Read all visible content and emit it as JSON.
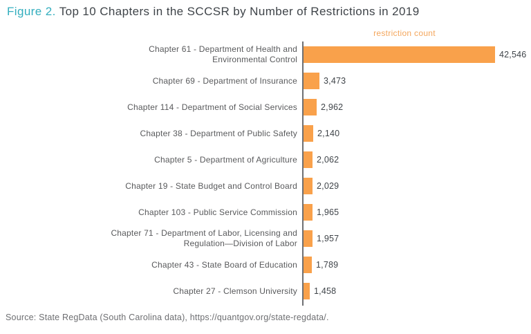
{
  "title": {
    "prefix": "Figure 2.",
    "text": "Top 10 Chapters in the SCCSR by Number of Restrictions in 2019"
  },
  "legend": {
    "label": "restriction count"
  },
  "source": {
    "text": "Source: State RegData (South Carolina data), https://quantgov.org/state-regdata/."
  },
  "colors": {
    "bar": "#F9A14B",
    "legend_text": "#F4A65C",
    "title_accent": "#33AEBE",
    "title_text": "#3F4449",
    "category_text": "#58595B",
    "value_text": "#3F4449",
    "axis_line": "#6E6F72",
    "source_text": "#6D6E71",
    "background": "#FFFFFF"
  },
  "chart_data": {
    "type": "bar",
    "orientation": "horizontal",
    "title": "Top 10 Chapters in the SCCSR by Number of Restrictions in 2019",
    "value_axis_label": "restriction count",
    "xlim": [
      0,
      42546
    ],
    "grid": false,
    "legend_position": "top-center",
    "categories": [
      [
        "Chapter 61 - Department of Health and",
        "Environmental Control"
      ],
      [
        "Chapter 69 - Department of Insurance"
      ],
      [
        "Chapter 114 - Department of Social Services"
      ],
      [
        "Chapter 38 - Department of Public Safety"
      ],
      [
        "Chapter 5 - Department of Agriculture"
      ],
      [
        "Chapter 19 - State Budget and Control Board"
      ],
      [
        "Chapter 103 - Public Service Commission"
      ],
      [
        "Chapter 71 - Department of Labor, Licensing and",
        "Regulation—Division of Labor"
      ],
      [
        "Chapter 43 - State Board of Education"
      ],
      [
        "Chapter 27 - Clemson University"
      ]
    ],
    "values": [
      42546,
      3473,
      2962,
      2140,
      2062,
      2029,
      1965,
      1957,
      1789,
      1458
    ],
    "value_labels": [
      "42,546",
      "3,473",
      "2,962",
      "2,140",
      "2,062",
      "2,029",
      "1,965",
      "1,957",
      "1,789",
      "1,458"
    ]
  }
}
